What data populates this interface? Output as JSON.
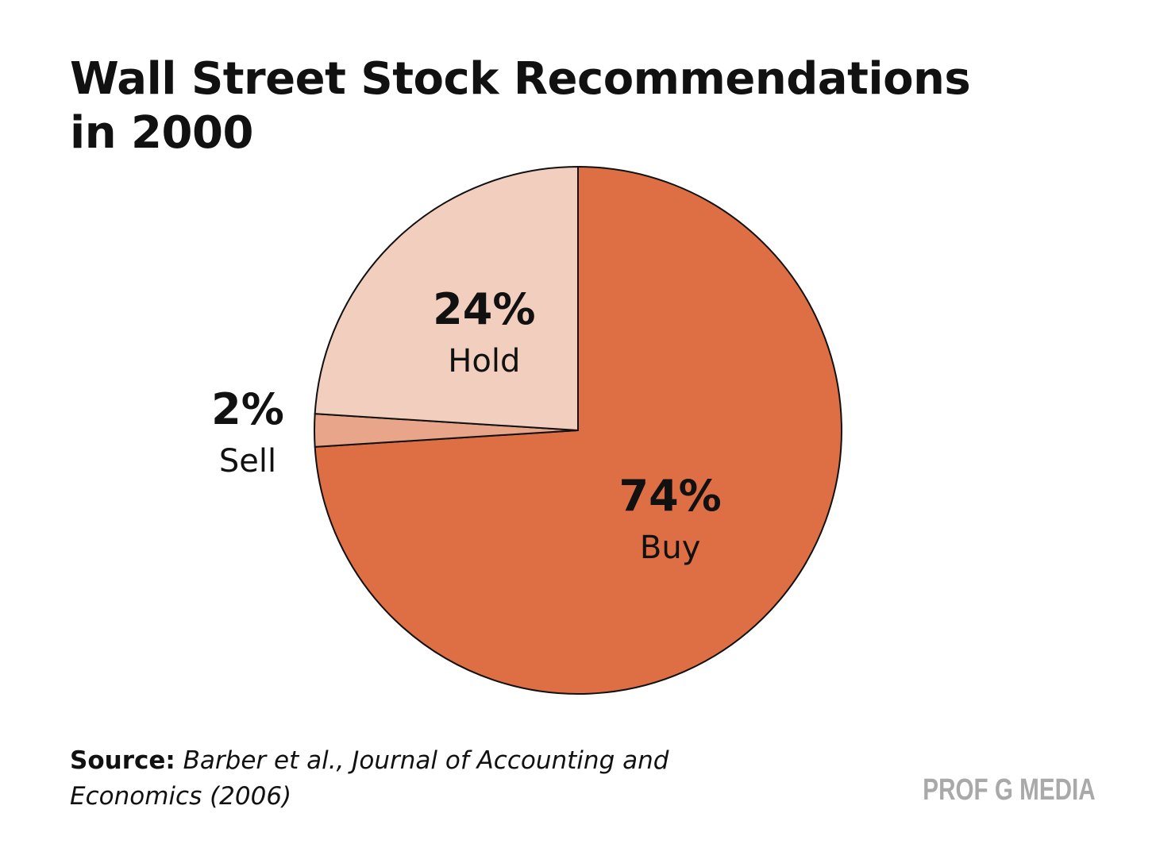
{
  "chart_data": {
    "type": "pie",
    "title_lines": [
      "Wall Street Stock Recommendations",
      "in 2000"
    ],
    "slices": [
      {
        "label": "Buy",
        "value": 74,
        "value_label": "74%",
        "color": "#DE6F44"
      },
      {
        "label": "Sell",
        "value": 2,
        "value_label": "2%",
        "color": "#E8A58A"
      },
      {
        "label": "Hold",
        "value": 24,
        "value_label": "24%",
        "color": "#F2CEBF"
      }
    ],
    "stroke_color": "#111111"
  },
  "source": {
    "label": "Source:",
    "text": "Barber et al., Journal of Accounting and Economics (2006)"
  },
  "brand": "PROF G MEDIA"
}
